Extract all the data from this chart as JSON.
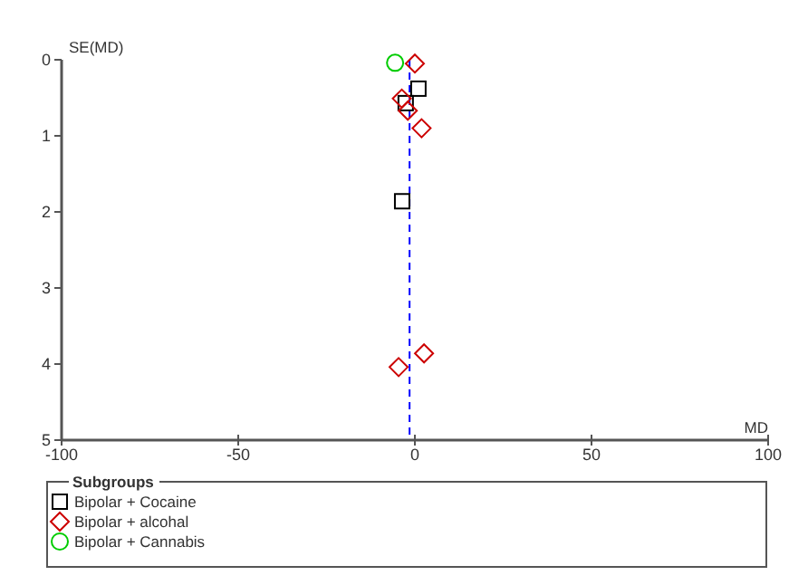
{
  "chart_data": {
    "type": "scatter",
    "xlabel": "MD",
    "ylabel": "SE(MD)",
    "legend_title": "Subgroups",
    "xlim": [
      -100,
      100
    ],
    "xticks": [
      -100,
      -50,
      0,
      50,
      100
    ],
    "ylim": [
      5,
      0
    ],
    "yticks": [
      0,
      1,
      2,
      3,
      4,
      5
    ],
    "grid": false,
    "legend": "bottom",
    "ref_lines": [
      {
        "axis": "x",
        "value": -1.5,
        "color": "#0000ff",
        "line_style": "dashed"
      }
    ],
    "series": [
      {
        "name": "Bipolar + Cocaine",
        "color": "#000000",
        "marker": "square",
        "x": [
          1,
          -2.6,
          -3.6
        ],
        "values": [
          0.38,
          0.57,
          1.86
        ]
      },
      {
        "name": "Bipolar + alcohal",
        "color": "#cc0000",
        "marker": "diamond",
        "x": [
          0,
          -3.7,
          -2,
          1.9,
          2.6,
          -4.6
        ],
        "values": [
          0.05,
          0.51,
          0.67,
          0.9,
          3.86,
          4.04
        ]
      },
      {
        "name": "Bipolar + Cannabis",
        "color": "#00cc00",
        "marker": "circle",
        "x": [
          -5.6
        ],
        "values": [
          0.04
        ]
      }
    ]
  }
}
